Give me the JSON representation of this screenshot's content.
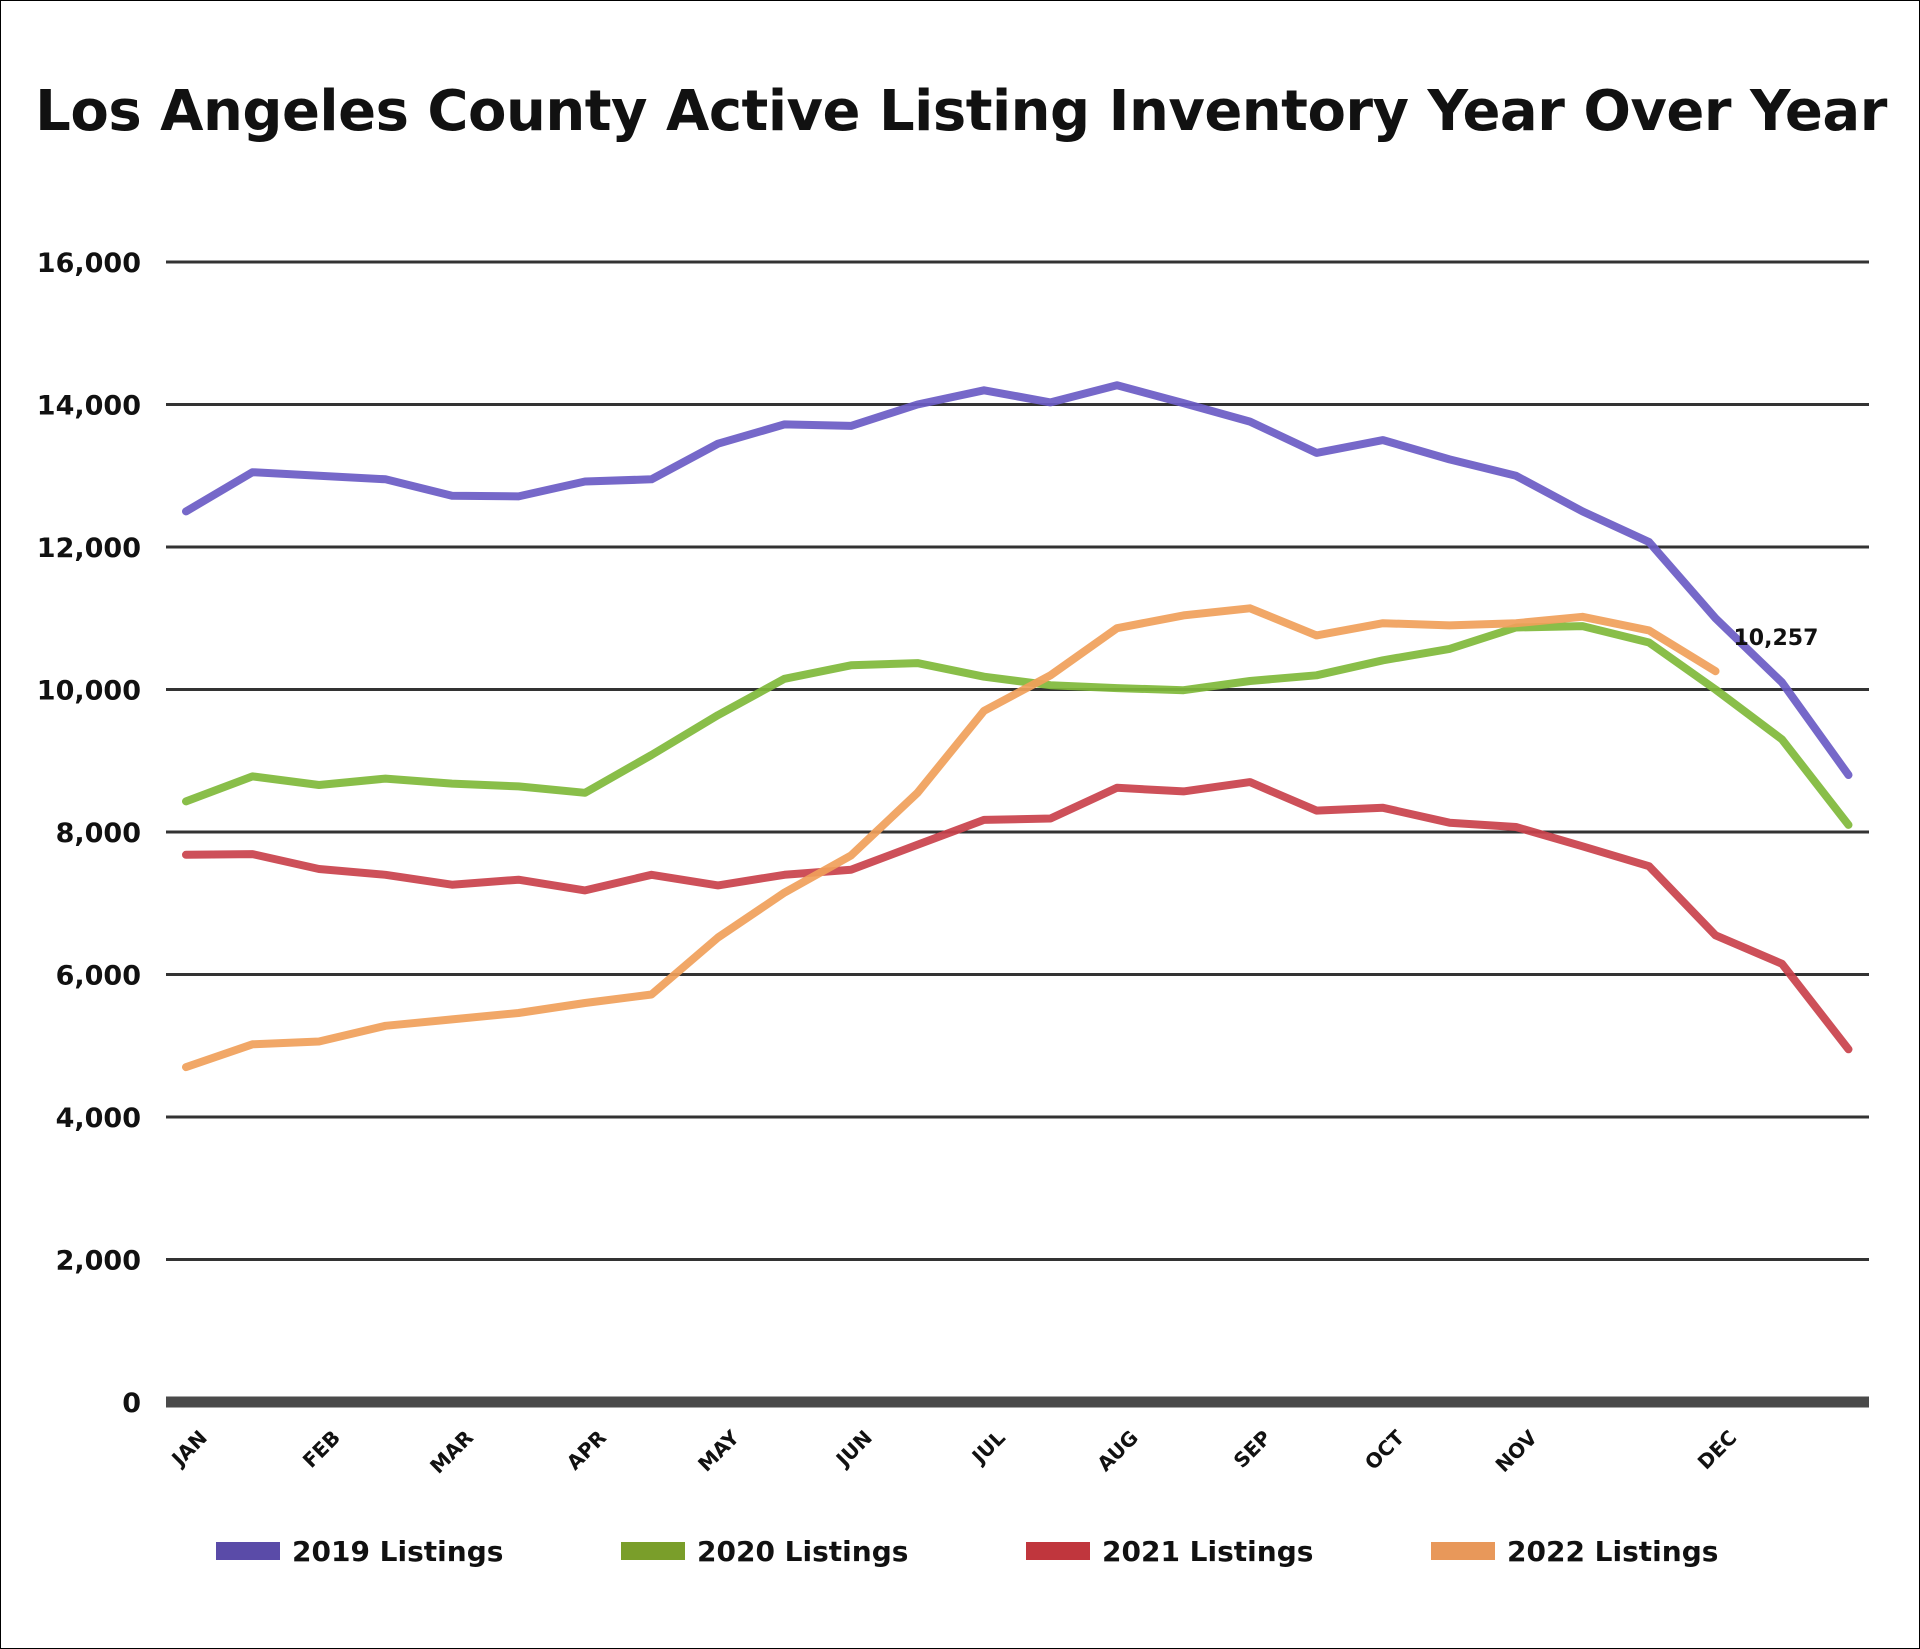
{
  "chart_data": {
    "type": "line",
    "title": "Los Angeles County Active Listing Inventory Year Over Year",
    "xlabel": "",
    "ylabel": "",
    "ylim": [
      0,
      16000
    ],
    "yticks": [
      0,
      2000,
      4000,
      6000,
      8000,
      10000,
      12000,
      14000,
      16000
    ],
    "ytick_labels": [
      "0",
      "2,000",
      "4,000",
      "6,000",
      "8,000",
      "10,000",
      "12,000",
      "14,000",
      "16,000"
    ],
    "grid": true,
    "legend_position": "bottom",
    "x_tick_labels": [
      "JAN",
      "FEB",
      "MAR",
      "APR",
      "MAY",
      "JUN",
      "JUL",
      "AUG",
      "SEP",
      "OCT",
      "NOV",
      "DEC"
    ],
    "x_tick_positions": [
      0.25,
      2.25,
      4.25,
      6.25,
      8.25,
      10.25,
      12.25,
      14.25,
      16.25,
      18.25,
      20.25,
      23.25
    ],
    "x_range": [
      0,
      25
    ],
    "series": [
      {
        "name": "2019 Listings",
        "color": "#6a5bc4",
        "values": [
          12500,
          13050,
          13000,
          12950,
          12720,
          12710,
          12920,
          12950,
          13450,
          13720,
          13700,
          14000,
          14200,
          14030,
          14270,
          14020,
          13760,
          13320,
          13500,
          13230,
          13000,
          12500,
          12070,
          11000,
          10100,
          8800
        ]
      },
      {
        "name": "2020 Listings",
        "color": "#7fb83a",
        "values": [
          8430,
          8780,
          8660,
          8750,
          8680,
          8640,
          8550,
          9080,
          9640,
          10150,
          10340,
          10370,
          10180,
          10060,
          10020,
          9990,
          10120,
          10200,
          10410,
          10570,
          10870,
          10890,
          10660,
          10000,
          9300,
          8100
        ]
      },
      {
        "name": "2021 Listings",
        "color": "#c9414b",
        "values": [
          7680,
          7690,
          7480,
          7400,
          7260,
          7330,
          7180,
          7400,
          7250,
          7400,
          7470,
          7820,
          8170,
          8190,
          8620,
          8570,
          8700,
          8300,
          8340,
          8130,
          8070,
          7800,
          7520,
          6550,
          6150,
          4950
        ]
      },
      {
        "name": "2022 Listings",
        "color": "#f0a05a",
        "values": [
          4700,
          5020,
          5060,
          5280,
          5370,
          5460,
          5600,
          5720,
          6520,
          7150,
          7670,
          8550,
          9700,
          10200,
          10860,
          11040,
          11140,
          10760,
          10930,
          10900,
          10930,
          11020,
          10830,
          10257
        ]
      }
    ],
    "annotations": [
      {
        "text": "10,257",
        "series": "2022 Listings",
        "index": 23
      }
    ]
  },
  "legend": {
    "items": [
      {
        "label": "2019 Listings",
        "color": "#5a4ba8"
      },
      {
        "label": "2020 Listings",
        "color": "#7a9e2a"
      },
      {
        "label": "2021 Listings",
        "color": "#c0363d"
      },
      {
        "label": "2022 Listings",
        "color": "#e8985a"
      }
    ]
  }
}
